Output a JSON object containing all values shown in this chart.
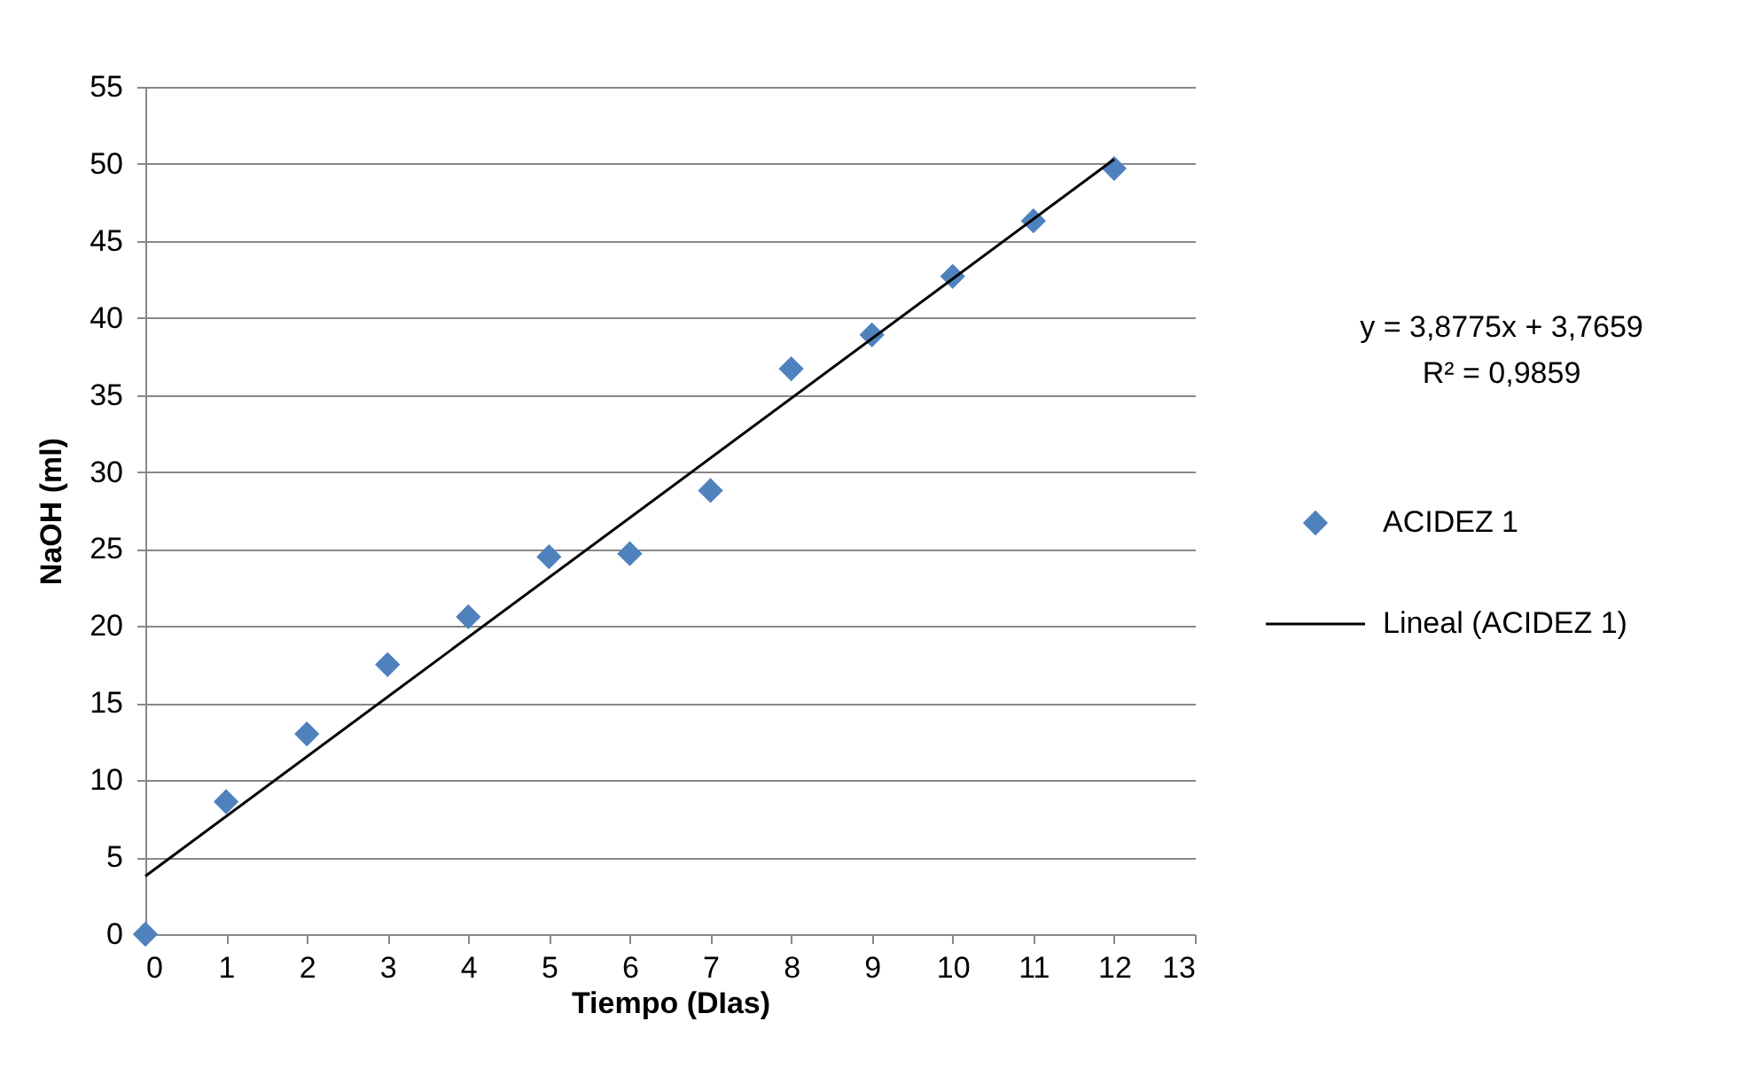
{
  "chart_data": {
    "type": "scatter",
    "xlabel": "Tiempo (DIas)",
    "ylabel": "NaOH (ml)",
    "x": [
      0,
      1,
      2,
      3,
      4,
      5,
      6,
      7,
      8,
      9,
      10,
      11,
      12
    ],
    "series": [
      {
        "name": "ACIDEZ 1",
        "color": "#4f81bd",
        "marker": "diamond",
        "values": [
          0,
          8.6,
          13.0,
          17.5,
          20.6,
          24.5,
          24.7,
          28.8,
          36.7,
          38.9,
          42.7,
          46.3,
          49.7
        ]
      },
      {
        "name": "Lineal (ACIDEZ 1)",
        "type": "line",
        "color": "#000000",
        "marker": "none",
        "x": [
          0,
          12
        ],
        "values": [
          3.7659,
          50.2959
        ]
      }
    ],
    "xlim": [
      0,
      13
    ],
    "xticks": [
      0,
      1,
      2,
      3,
      4,
      5,
      6,
      7,
      8,
      9,
      10,
      11,
      12,
      13
    ],
    "ylim": [
      0,
      55
    ],
    "yticks": [
      0,
      5,
      10,
      15,
      20,
      25,
      30,
      35,
      40,
      45,
      50,
      55
    ],
    "grid": "y",
    "legend": "right",
    "annotations": [
      "y = 3,8775x + 3,7659",
      "R² = 0,9859"
    ]
  }
}
